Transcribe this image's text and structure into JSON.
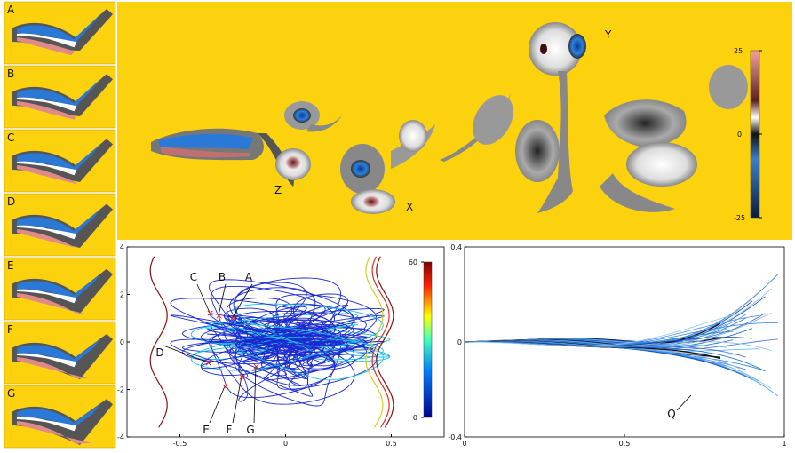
{
  "side_panels": [
    "A",
    "B",
    "C",
    "D",
    "E",
    "F",
    "G"
  ],
  "vorticity_panel": {
    "labels": [
      "Z",
      "X",
      "Y"
    ],
    "colorbar_ticks": [
      25,
      0,
      -25
    ]
  },
  "phase_plot": {
    "type": "line",
    "xlim": [
      -0.75,
      0.75
    ],
    "xticks": [
      -0.5,
      0,
      0.5
    ],
    "ylim": [
      -4,
      4
    ],
    "yticks": [
      -4,
      -2,
      0,
      2,
      4
    ],
    "colorbar_ticks": [
      0,
      60
    ],
    "annotations": [
      "C",
      "B",
      "A",
      "D",
      "E",
      "F",
      "G"
    ]
  },
  "shape_plot": {
    "type": "line",
    "xlim": [
      0,
      1
    ],
    "xticks": [
      0,
      0.5,
      1
    ],
    "ylim": [
      -0.4,
      0.4
    ],
    "yticks": [
      -0.4,
      0,
      0.4
    ],
    "annotations": [
      "Q"
    ]
  }
}
